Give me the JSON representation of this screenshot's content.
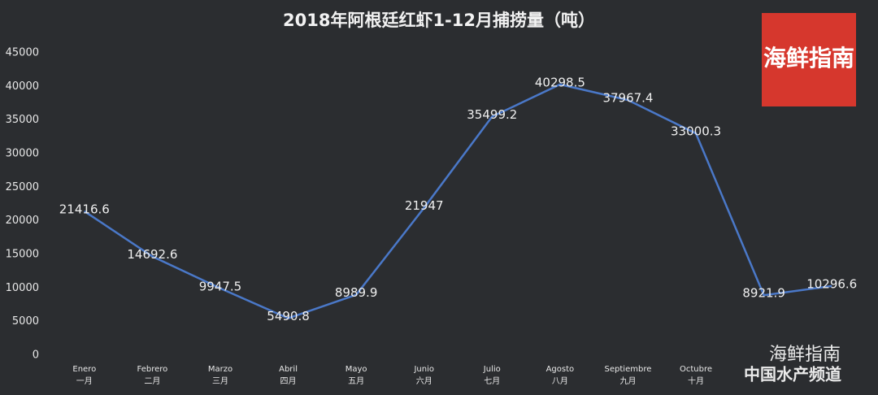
{
  "chart_data": {
    "type": "line",
    "title": "2018年阿根廷红虾1-12月捕捞量（吨）",
    "categories": [
      "Enero",
      "Febrero",
      "Marzo",
      "Abril",
      "Mayo",
      "Junio",
      "Julio",
      "Agosto",
      "Septiembre",
      "Octubre",
      null,
      null
    ],
    "categories_zh": [
      "一月",
      "二月",
      "三月",
      "四月",
      "五月",
      "六月",
      "七月",
      "八月",
      "九月",
      "十月",
      null,
      null
    ],
    "values": [
      21416.6,
      14692.6,
      9947.5,
      5490.8,
      8989.9,
      21947,
      35499.2,
      40298.5,
      37967.4,
      33000.3,
      8921.9,
      10296.6
    ],
    "color": "#4a78c8",
    "ylim": [
      0,
      45000
    ],
    "yticks": [
      0,
      5000,
      10000,
      15000,
      20000,
      25000,
      30000,
      35000,
      40000,
      45000
    ],
    "grid": false,
    "logo_text": "海鲜指南",
    "watermarks": [
      "海鲜指南",
      "中国水产频道"
    ]
  }
}
